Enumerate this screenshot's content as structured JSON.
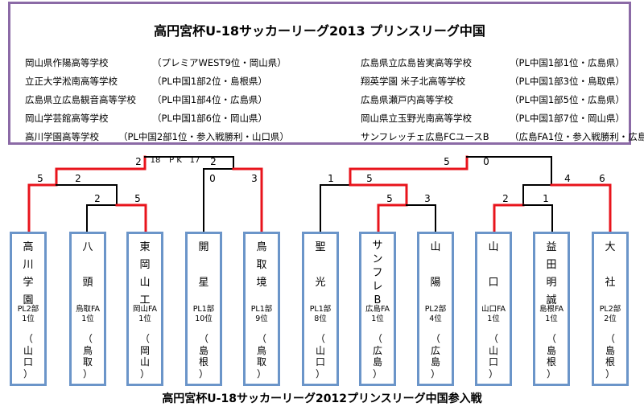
{
  "info": {
    "title": "高円宮杯U-18サッカーリーグ2013 プリンスリーグ中国",
    "left": [
      {
        "name": "岡山県作陽高等学校",
        "qual": "（プレミアWEST9位・岡山県）"
      },
      {
        "name": "立正大学淞南高等学校",
        "qual": "（PL中国1部2位・島根県）"
      },
      {
        "name": "広島県立広島観音高等学校",
        "qual": "（PL中国1部4位・広島県）"
      },
      {
        "name": "岡山学芸館高等学校",
        "qual": "（PL中国1部6位・岡山県）"
      },
      {
        "name": "高川学園高等学校",
        "qual": "（PL中国2部1位・参入戦勝利・山口県）"
      }
    ],
    "right": [
      {
        "name": "広島県立広島皆実高等学校",
        "qual": "（PL中国1部1位・広島県）"
      },
      {
        "name": "翔英学園 米子北高等学校",
        "qual": "（PL中国1部3位・鳥取県）"
      },
      {
        "name": "広島県瀬戸内高等学校",
        "qual": "（PL中国1部5位・広島県）"
      },
      {
        "name": "岡山県立玉野光南高等学校",
        "qual": "（PL中国1部7位・岡山県）"
      },
      {
        "name": "サンフレッチェ広島FCユースB",
        "qual": "（広島FA1位・参入戦勝利・広島県）"
      }
    ]
  },
  "teams": [
    {
      "name": [
        "高",
        "川",
        "学",
        "園"
      ],
      "rank": [
        "PL2部",
        "1位"
      ],
      "pref": [
        "（",
        "山",
        "口",
        "）"
      ]
    },
    {
      "name": [
        "八",
        "",
        "頭"
      ],
      "rank": [
        "鳥取FA",
        "1位"
      ],
      "pref": [
        "（",
        "鳥",
        "取",
        "）"
      ]
    },
    {
      "name": [
        "東",
        "岡",
        "山",
        "工"
      ],
      "rank": [
        "岡山FA",
        "1位"
      ],
      "pref": [
        "（",
        "岡",
        "山",
        "）"
      ]
    },
    {
      "name": [
        "開",
        "",
        "星"
      ],
      "rank": [
        "PL1部",
        "10位"
      ],
      "pref": [
        "（",
        "島",
        "根",
        "）"
      ]
    },
    {
      "name": [
        "鳥",
        "取",
        "境"
      ],
      "rank": [
        "PL1部",
        "9位"
      ],
      "pref": [
        "（",
        "鳥",
        "取",
        "）"
      ]
    },
    {
      "name": [
        "聖",
        "",
        "光"
      ],
      "rank": [
        "PL1部",
        "8位"
      ],
      "pref": [
        "（",
        "山",
        "口",
        "）"
      ]
    },
    {
      "name": [
        "サ",
        "ン",
        "フ",
        "レ",
        "B"
      ],
      "rank": [
        "広島FA",
        "1位"
      ],
      "pref": [
        "（",
        "広",
        "島",
        "）"
      ]
    },
    {
      "name": [
        "山",
        "",
        "陽"
      ],
      "rank": [
        "PL2部",
        "4位"
      ],
      "pref": [
        "（",
        "広",
        "島",
        "）"
      ]
    },
    {
      "name": [
        "山",
        "",
        "口"
      ],
      "rank": [
        "山口FA",
        "1位"
      ],
      "pref": [
        "（",
        "山",
        "口",
        "）"
      ]
    },
    {
      "name": [
        "益",
        "田",
        "明",
        "誠"
      ],
      "rank": [
        "島根FA",
        "1位"
      ],
      "pref": [
        "（",
        "島",
        "根",
        "）"
      ]
    },
    {
      "name": [
        "大",
        "",
        "社"
      ],
      "rank": [
        "PL2部",
        "2位"
      ],
      "pref": [
        "（",
        "島",
        "根",
        "）"
      ]
    }
  ],
  "scores": {
    "l_final_left": "2",
    "l_final_pk_left": "18",
    "l_final_pk": "P K",
    "l_final_pk_right": "17",
    "l_final_right": "2",
    "l_a_left": "5",
    "l_a_right": "2",
    "l_b_left": "2",
    "l_b_right": "5",
    "l_c_left": "0",
    "l_c_right": "3",
    "r_final_left": "5",
    "r_final_right": "0",
    "r_a_left": "1",
    "r_a_right": "5",
    "r_b_left": "5",
    "r_b_right": "3",
    "r_c_left": "4",
    "r_c_right": "6",
    "r_d_left": "2",
    "r_d_right": "1"
  },
  "colors": {
    "winner": "#e8141c",
    "loser": "#000000",
    "box_border": "#6b95c9",
    "info_border": "#8b6aa6"
  },
  "bottom_title": "高円宮杯U-18サッカーリーグ2012プリンスリーグ中国参入戦"
}
